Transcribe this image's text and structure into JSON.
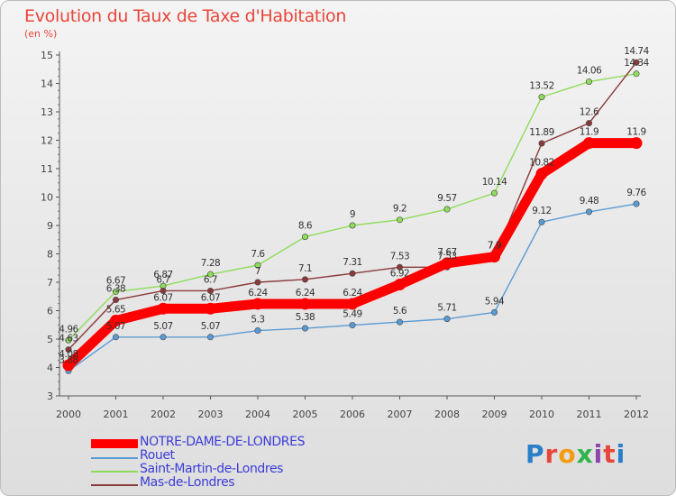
{
  "header": {
    "title": "Evolution du Taux de Taxe d'Habitation",
    "unit": "(en %)"
  },
  "brand": {
    "text": "Proxiti"
  },
  "chart_data": {
    "type": "line",
    "title": "Evolution du Taux de Taxe d'Habitation",
    "ylabel": "(en %)",
    "x": [
      "2000",
      "2001",
      "2002",
      "2003",
      "2004",
      "2005",
      "2006",
      "2007",
      "2008",
      "2009",
      "2010",
      "2011",
      "2012"
    ],
    "ylim": [
      3,
      15
    ],
    "yticks": [
      "3",
      "4",
      "5",
      "6",
      "7",
      "8",
      "9",
      "10",
      "11",
      "12",
      "13",
      "14",
      "15"
    ],
    "grid": false,
    "legend": "bottom-left",
    "series": [
      {
        "name": "NOTRE-DAME-DE-LONDRES",
        "color": "#ff0000",
        "values": [
          4.08,
          5.65,
          6.07,
          6.07,
          6.24,
          6.24,
          6.24,
          6.92,
          7.67,
          7.9,
          10.82,
          11.9,
          11.9
        ],
        "labels": [
          "4.08",
          "5.65",
          "6.07",
          "6.07",
          "6.24",
          "6.24",
          "6.24",
          "6.92",
          "7.67",
          "7.9",
          "10.82",
          "11.9",
          "11.9"
        ]
      },
      {
        "name": "Rouet",
        "color": "#5b9bd5",
        "values": [
          3.88,
          5.07,
          5.07,
          5.07,
          5.3,
          5.38,
          5.49,
          5.6,
          5.71,
          5.94,
          9.12,
          9.48,
          9.76
        ],
        "labels": [
          "3.88",
          "5.07",
          "5.07",
          "5.07",
          "5.3",
          "5.38",
          "5.49",
          "5.6",
          "5.71",
          "5.94",
          "9.12",
          "9.48",
          "9.76"
        ]
      },
      {
        "name": "Saint-Martin-de-Londres",
        "color": "#8fdc5a",
        "values": [
          4.96,
          6.67,
          6.87,
          7.28,
          7.6,
          8.6,
          9,
          9.2,
          9.57,
          10.14,
          13.52,
          14.06,
          14.34
        ],
        "labels": [
          "4.96",
          "6.67",
          "6.87",
          "7.28",
          "7.6",
          "8.6",
          "9",
          "9.2",
          "9.57",
          "10.14",
          "13.52",
          "14.06",
          "14.34"
        ]
      },
      {
        "name": "Mas-de-Londres",
        "color": "#8b3a3a",
        "values": [
          4.63,
          6.38,
          6.7,
          6.7,
          7,
          7.1,
          7.31,
          7.53,
          7.53,
          7.9,
          11.89,
          12.6,
          14.74
        ],
        "labels": [
          "4.63",
          "6.38",
          "6.7",
          "6.7",
          "7",
          "7.1",
          "7.31",
          "7.53",
          "7.53",
          "7.9",
          "11.89",
          "12.6",
          "14.74"
        ]
      }
    ]
  },
  "colors": {
    "title": "#e8463a",
    "axis": "#555555",
    "legend_text": "#3c3cd8"
  }
}
